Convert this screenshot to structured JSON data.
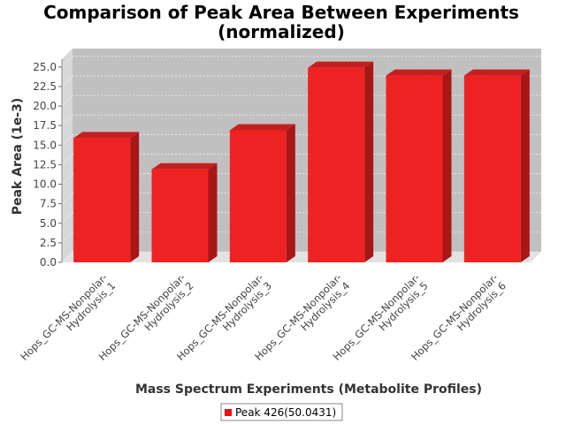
{
  "chart_data": {
    "type": "bar",
    "title": "Comparison of Peak Area Between Experiments",
    "subtitle": "(normalized)",
    "xlabel": "Mass Spectrum Experiments (Metabolite Profiles)",
    "ylabel": "Peak Area (1e-3)",
    "categories": [
      [
        "Hops_GC-MS-Nonpolar-",
        "Hydrolysis_1"
      ],
      [
        "Hops_GC-MS-Nonpolar-",
        "Hydrolysis_2"
      ],
      [
        "Hops_GC-MS-Nonpolar-",
        "Hydrolysis_3"
      ],
      [
        "Hops_GC-MS-Nonpolar-",
        "Hydrolysis_4"
      ],
      [
        "Hops_GC-MS-Nonpolar-",
        "Hydrolysis_5"
      ],
      [
        "Hops_GC-MS-Nonpolar-",
        "Hydrolysis_6"
      ]
    ],
    "series": [
      {
        "name": "Peak 426(50.0431)",
        "values": [
          15.9,
          11.9,
          16.9,
          24.9,
          23.9,
          23.9
        ]
      }
    ],
    "ylim": [
      0,
      26
    ],
    "yticks": [
      "0.0",
      "2.5",
      "5.0",
      "7.5",
      "10.0",
      "12.5",
      "15.0",
      "17.5",
      "20.0",
      "22.5",
      "25.0"
    ],
    "grid": true,
    "legend": "bottom-center",
    "colors": {
      "bar": "#ee2222",
      "bar_top": "#c42020",
      "bar_side": "#a81616",
      "plot_bg": "#c0c0c0"
    }
  }
}
